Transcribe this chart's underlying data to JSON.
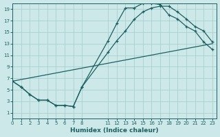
{
  "xlabel": "Humidex (Indice chaleur)",
  "bg_color": "#cce8e8",
  "grid_color": "#aacece",
  "line_color": "#1a6060",
  "x_ticks": [
    0,
    1,
    2,
    3,
    4,
    5,
    6,
    7,
    8,
    11,
    12,
    13,
    14,
    15,
    16,
    17,
    18,
    19,
    20,
    21,
    22,
    23
  ],
  "x_tick_labels": [
    "0",
    "1",
    "2",
    "3",
    "4",
    "5",
    "6",
    "7",
    "8",
    "11",
    "12",
    "13",
    "14",
    "15",
    "16",
    "17",
    "18",
    "19",
    "20",
    "21",
    "22",
    "23"
  ],
  "xlim": [
    0,
    23.5
  ],
  "ylim": [
    0,
    20
  ],
  "y_ticks": [
    1,
    3,
    5,
    7,
    9,
    11,
    13,
    15,
    17,
    19
  ],
  "curve1_x": [
    0,
    1,
    2,
    3,
    4,
    5,
    6,
    7,
    8,
    11,
    12,
    13,
    14,
    15,
    16,
    17,
    18,
    19,
    20,
    21,
    22,
    23
  ],
  "curve1_y": [
    6.5,
    5.5,
    4.2,
    3.2,
    3.2,
    2.3,
    2.3,
    2.1,
    5.5,
    13.5,
    16.5,
    19.2,
    19.2,
    20.0,
    20.0,
    19.8,
    18.0,
    17.3,
    16.0,
    15.2,
    13.3,
    12.0
  ],
  "curve2_x": [
    0,
    1,
    2,
    3,
    4,
    5,
    6,
    7,
    8,
    11,
    12,
    13,
    14,
    15,
    16,
    17,
    18,
    19,
    20,
    21,
    22,
    23
  ],
  "curve2_y": [
    6.5,
    5.5,
    4.2,
    3.2,
    3.2,
    2.3,
    2.3,
    2.1,
    5.5,
    11.5,
    13.5,
    15.2,
    17.2,
    18.5,
    19.2,
    19.5,
    19.5,
    18.5,
    17.3,
    16.0,
    15.2,
    13.3
  ],
  "curve3_x": [
    0,
    23
  ],
  "curve3_y": [
    6.5,
    13.0
  ],
  "marker1": "D",
  "marker2": "D",
  "marker_size": 2.8
}
